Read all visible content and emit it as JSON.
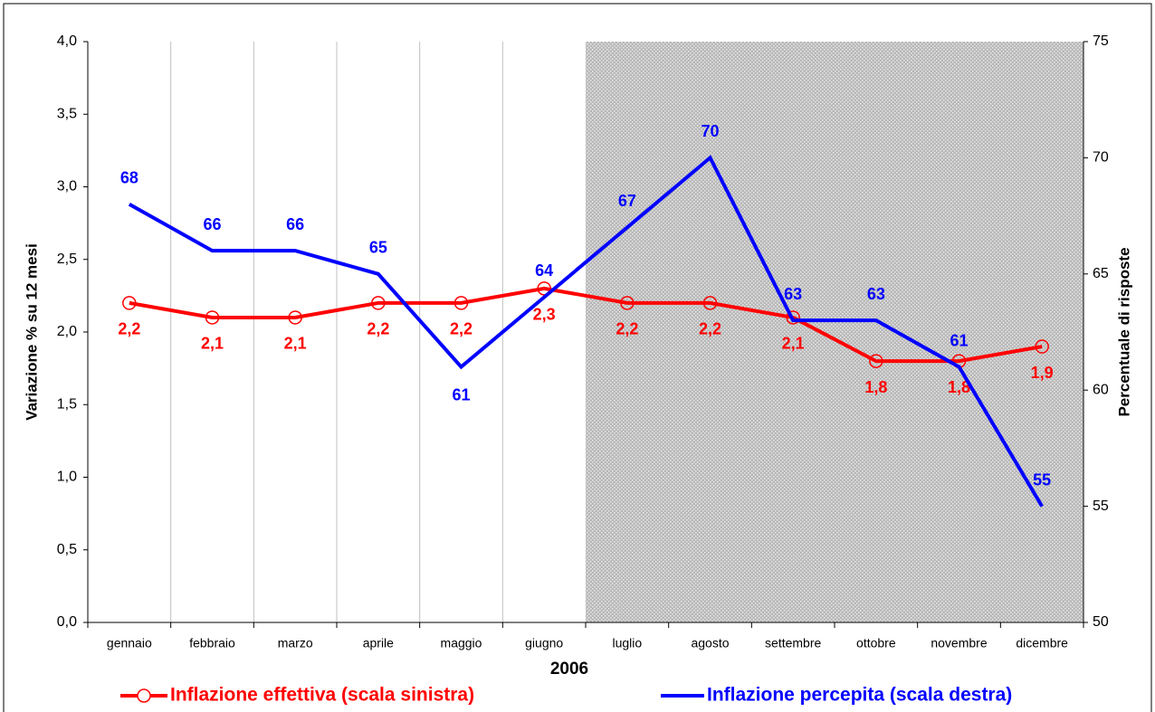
{
  "chart_data": {
    "type": "line",
    "x_label": "2006",
    "y_label": "Variazione % su 12 mesi",
    "y2_label": "Percentuale di risposte",
    "categories": [
      "gennaio",
      "febbraio",
      "marzo",
      "aprile",
      "maggio",
      "giugno",
      "luglio",
      "agosto",
      "settembre",
      "ottobre",
      "novembre",
      "dicembre"
    ],
    "series": [
      {
        "name": "Inflazione effettiva (scala sinistra)",
        "color": "#ff0000",
        "marker": "circle",
        "values": [
          2.2,
          2.1,
          2.1,
          2.2,
          2.2,
          2.3,
          2.2,
          2.2,
          2.1,
          1.8,
          1.8,
          1.9
        ],
        "value_labels": [
          "2,2",
          "2,1",
          "2,1",
          "2,2",
          "2,2",
          "2,3",
          "2,2",
          "2,2",
          "2,1",
          "1,8",
          "1,8",
          "1,9"
        ]
      },
      {
        "name": "Inflazione percepita (scala destra)",
        "color": "#0000ff",
        "axis": "y2",
        "values": [
          68,
          66,
          66,
          65,
          61,
          64,
          67,
          70,
          63,
          63,
          61,
          55
        ]
      }
    ],
    "ylim": [
      0,
      4
    ],
    "yticks": [
      {
        "value": 0,
        "label": "0,0"
      },
      {
        "value": 0.5,
        "label": "0,5"
      },
      {
        "value": 1,
        "label": "1,0"
      },
      {
        "value": 1.5,
        "label": "1,5"
      },
      {
        "value": 2,
        "label": "2,0"
      },
      {
        "value": 2.5,
        "label": "2,5"
      },
      {
        "value": 3,
        "label": "3,0"
      },
      {
        "value": 3.5,
        "label": "3,5"
      },
      {
        "value": 4,
        "label": "4,0"
      }
    ],
    "y2lim": [
      50,
      75
    ],
    "y2ticks": [
      50,
      55,
      60,
      65,
      70,
      75
    ],
    "legend": "bottom"
  }
}
